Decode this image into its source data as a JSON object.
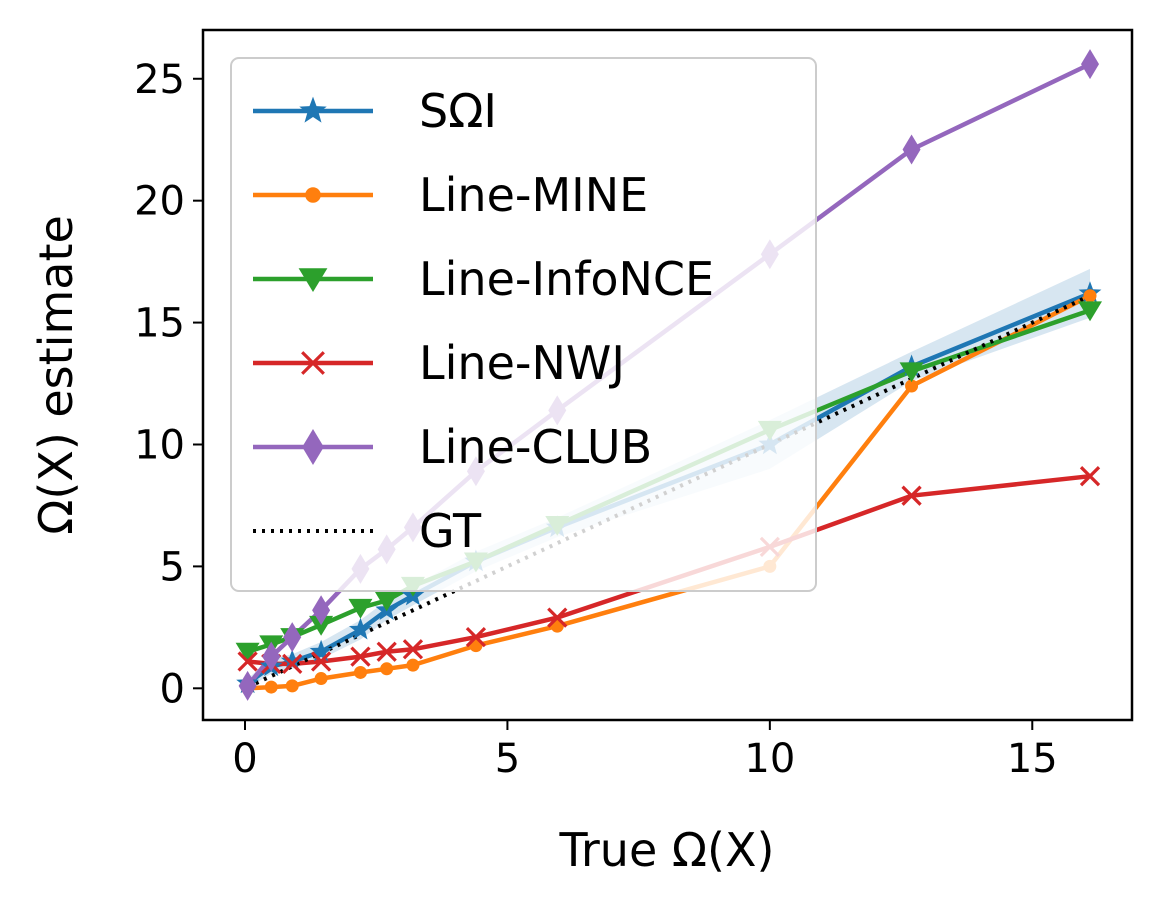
{
  "chart_data": {
    "type": "line",
    "xlabel": "True Ω(X)",
    "ylabel": "Ω(X) estimate",
    "xlim": [
      -0.8,
      16.9
    ],
    "ylim": [
      -1.3,
      27.0
    ],
    "x_ticks": [
      0,
      5,
      10,
      15
    ],
    "y_ticks": [
      0,
      5,
      10,
      15,
      20,
      25
    ],
    "grid": false,
    "legend_position": "top-left",
    "x": [
      0.05,
      0.5,
      0.9,
      1.45,
      2.2,
      2.7,
      3.2,
      4.4,
      5.95,
      10.0,
      12.7,
      16.1
    ],
    "series": [
      {
        "name": "SΩI",
        "color": "#1f77b4",
        "marker": "star",
        "values": [
          0.2,
          0.9,
          1.1,
          1.5,
          2.4,
          3.2,
          3.8,
          5.2,
          6.6,
          10.0,
          13.2,
          16.2
        ],
        "band_low": [
          0.0,
          0.6,
          0.8,
          1.2,
          2.0,
          2.8,
          3.4,
          4.8,
          6.2,
          9.0,
          12.6,
          15.2
        ],
        "band_high": [
          0.4,
          1.2,
          1.4,
          1.9,
          2.8,
          3.6,
          4.2,
          5.6,
          7.0,
          11.0,
          13.8,
          17.2
        ]
      },
      {
        "name": "Line-MINE",
        "color": "#ff7f0e",
        "marker": "dot",
        "values": [
          0.0,
          0.05,
          0.1,
          0.4,
          0.65,
          0.8,
          0.95,
          1.75,
          2.55,
          5.0,
          12.4,
          16.1
        ]
      },
      {
        "name": "Line-InfoNCE",
        "color": "#2ca02c",
        "marker": "triangle-down",
        "values": [
          1.5,
          1.8,
          2.1,
          2.6,
          3.3,
          3.6,
          4.2,
          5.2,
          6.7,
          10.6,
          13.0,
          15.5
        ]
      },
      {
        "name": "Line-NWJ",
        "color": "#d62728",
        "marker": "x",
        "values": [
          1.1,
          1.0,
          1.0,
          1.1,
          1.3,
          1.5,
          1.6,
          2.1,
          2.9,
          5.8,
          7.9,
          8.7
        ]
      },
      {
        "name": "Line-CLUB",
        "color": "#9467bd",
        "marker": "thin-diamond",
        "values": [
          0.1,
          1.3,
          2.1,
          3.2,
          4.9,
          5.7,
          6.6,
          8.9,
          11.4,
          17.8,
          22.1,
          25.6
        ]
      },
      {
        "name": "GT",
        "color": "#000000",
        "marker": "none",
        "dotted": true,
        "values": [
          0.05,
          0.5,
          0.9,
          1.45,
          2.2,
          2.7,
          3.2,
          4.4,
          5.95,
          10.0,
          12.7,
          16.1
        ]
      }
    ]
  }
}
